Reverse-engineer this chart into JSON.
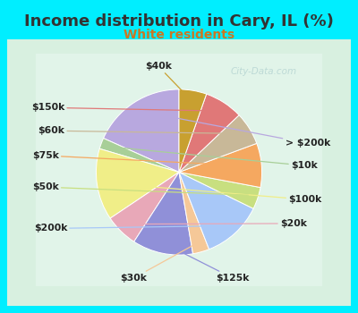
{
  "title": "Income distribution in Cary, IL (%)",
  "subtitle": "White residents",
  "title_color": "#333333",
  "subtitle_color": "#cc7722",
  "background_outer": "#00eeff",
  "background_inner_top": "#e0f5f0",
  "background_inner_bottom": "#d0eed8",
  "labels": [
    "> $200k",
    "$10k",
    "$100k",
    "$20k",
    "$125k",
    "$30k",
    "$200k",
    "$50k",
    "$75k",
    "$60k",
    "$150k",
    "$40k"
  ],
  "values": [
    17,
    2,
    13,
    6,
    11,
    3,
    11,
    4,
    8,
    6,
    7,
    5
  ],
  "colors": [
    "#b8a8df",
    "#a8cf98",
    "#f0ee88",
    "#e8a8b8",
    "#9090d8",
    "#f5c898",
    "#a8c8f8",
    "#c8df80",
    "#f5a860",
    "#c8b898",
    "#e07878",
    "#c8a030"
  ],
  "watermark": "City-Data.com",
  "startangle": 90,
  "label_fontsize": 7.8,
  "title_fontsize": 13,
  "subtitle_fontsize": 10,
  "label_color": "#222222"
}
